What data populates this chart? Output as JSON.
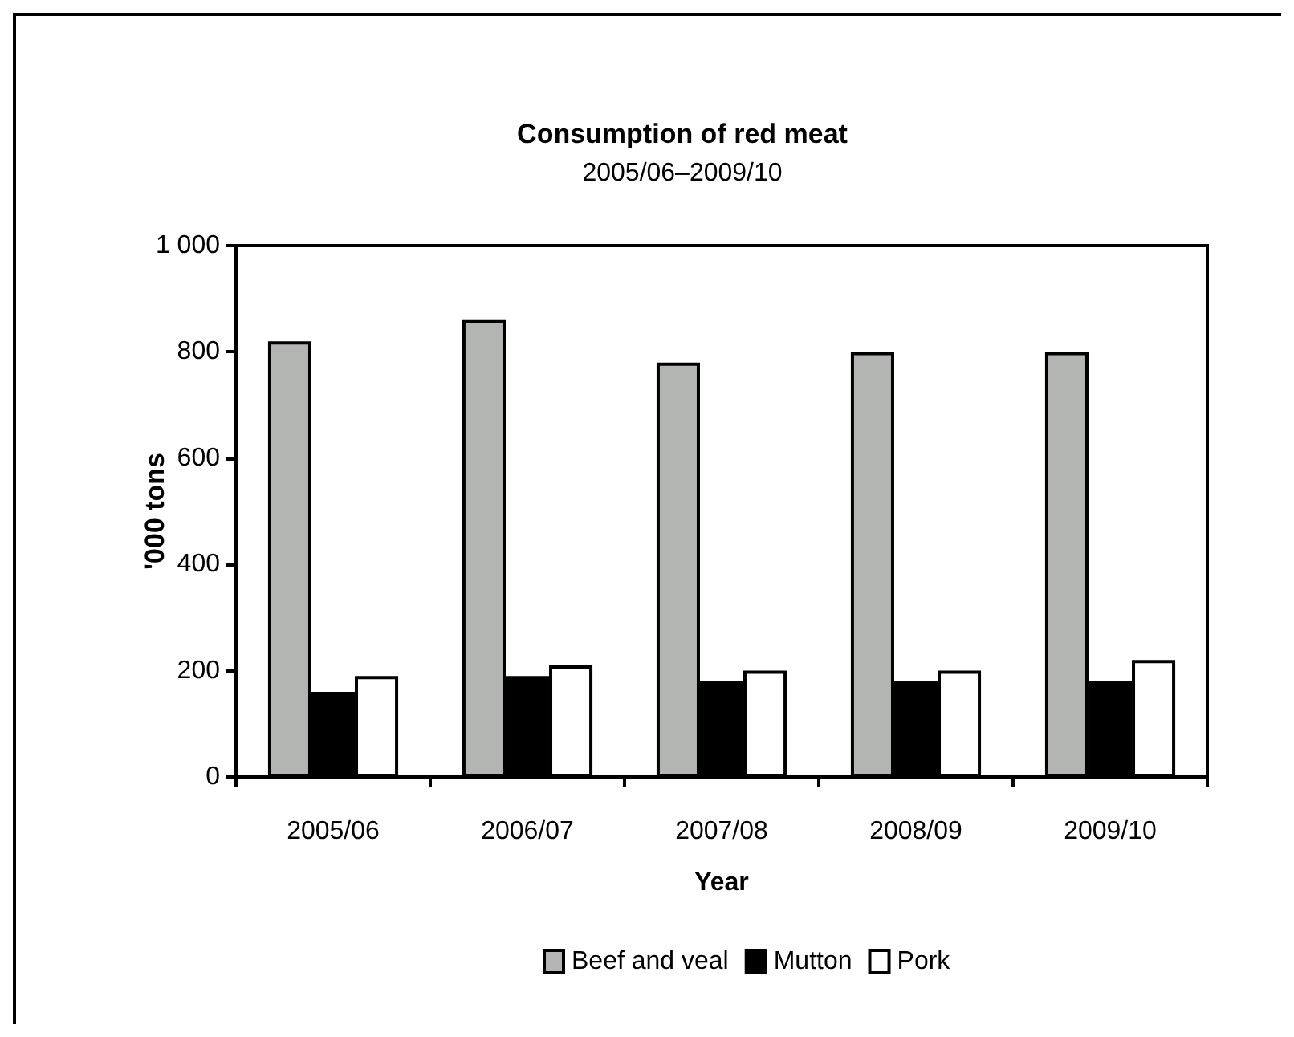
{
  "chart_data": {
    "type": "bar",
    "title": "Consumption of red meat",
    "subtitle": "2005/06–2009/10",
    "xlabel": "Year",
    "ylabel": "'000 tons",
    "categories": [
      "2005/06",
      "2006/07",
      "2007/08",
      "2008/09",
      "2009/10"
    ],
    "series": [
      {
        "name": "Beef and veal",
        "color": "#b3b5b3",
        "values": [
          820,
          860,
          780,
          800,
          800
        ]
      },
      {
        "name": "Mutton",
        "color": "#000000",
        "values": [
          160,
          190,
          180,
          180,
          180
        ]
      },
      {
        "name": "Pork",
        "color": "#ffffff",
        "values": [
          190,
          210,
          200,
          200,
          220
        ]
      }
    ],
    "ylim": [
      0,
      1000
    ],
    "yticks": [
      0,
      200,
      400,
      600,
      800,
      {
        "value": 1000,
        "label": "1 000"
      }
    ],
    "grid": false,
    "legend": "bottom"
  }
}
